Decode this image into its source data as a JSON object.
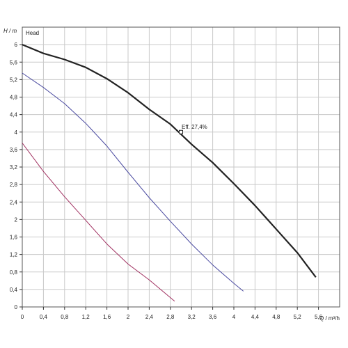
{
  "chart_data": {
    "type": "line",
    "title": "",
    "legend_label": "Head",
    "ylabel": "H / m",
    "xlabel": "Q / m³/h",
    "xlim": [
      0,
      6
    ],
    "ylim": [
      0,
      6.4
    ],
    "grid": true,
    "x_ticks": [
      "0",
      "0,4",
      "0,8",
      "1,2",
      "1,6",
      "2",
      "2,4",
      "2,8",
      "3,2",
      "3,6",
      "4",
      "4,4",
      "4,8",
      "5,2",
      "5,6"
    ],
    "y_ticks": [
      "0",
      "0,4",
      "0,8",
      "1,2",
      "1,6",
      "2",
      "2,4",
      "2,8",
      "3,2",
      "3,6",
      "4",
      "4,4",
      "4,8",
      "5,2",
      "5,6",
      "6"
    ],
    "series": [
      {
        "color": "#222222",
        "points": [
          [
            0,
            6.0
          ],
          [
            0.4,
            5.8
          ],
          [
            0.8,
            5.66
          ],
          [
            1.2,
            5.48
          ],
          [
            1.6,
            5.22
          ],
          [
            2.0,
            4.9
          ],
          [
            2.4,
            4.52
          ],
          [
            2.8,
            4.18
          ],
          [
            3.2,
            3.72
          ],
          [
            3.6,
            3.3
          ],
          [
            4.0,
            2.82
          ],
          [
            4.4,
            2.32
          ],
          [
            4.8,
            1.78
          ],
          [
            5.2,
            1.24
          ],
          [
            5.55,
            0.68
          ]
        ]
      },
      {
        "color": "#4a4aa0",
        "points": [
          [
            0,
            5.35
          ],
          [
            0.4,
            5.02
          ],
          [
            0.8,
            4.65
          ],
          [
            1.2,
            4.2
          ],
          [
            1.6,
            3.68
          ],
          [
            2.0,
            3.08
          ],
          [
            2.4,
            2.5
          ],
          [
            2.8,
            1.96
          ],
          [
            3.2,
            1.44
          ],
          [
            3.6,
            0.96
          ],
          [
            4.0,
            0.54
          ],
          [
            4.18,
            0.36
          ]
        ]
      },
      {
        "color": "#a03060",
        "points": [
          [
            0,
            3.75
          ],
          [
            0.4,
            3.1
          ],
          [
            0.8,
            2.52
          ],
          [
            1.2,
            1.98
          ],
          [
            1.6,
            1.44
          ],
          [
            2.0,
            0.98
          ],
          [
            2.4,
            0.62
          ],
          [
            2.88,
            0.13
          ]
        ]
      }
    ],
    "annotation": {
      "text": "Eff.  27,4%",
      "x": 3.0,
      "y": 4.0
    }
  }
}
